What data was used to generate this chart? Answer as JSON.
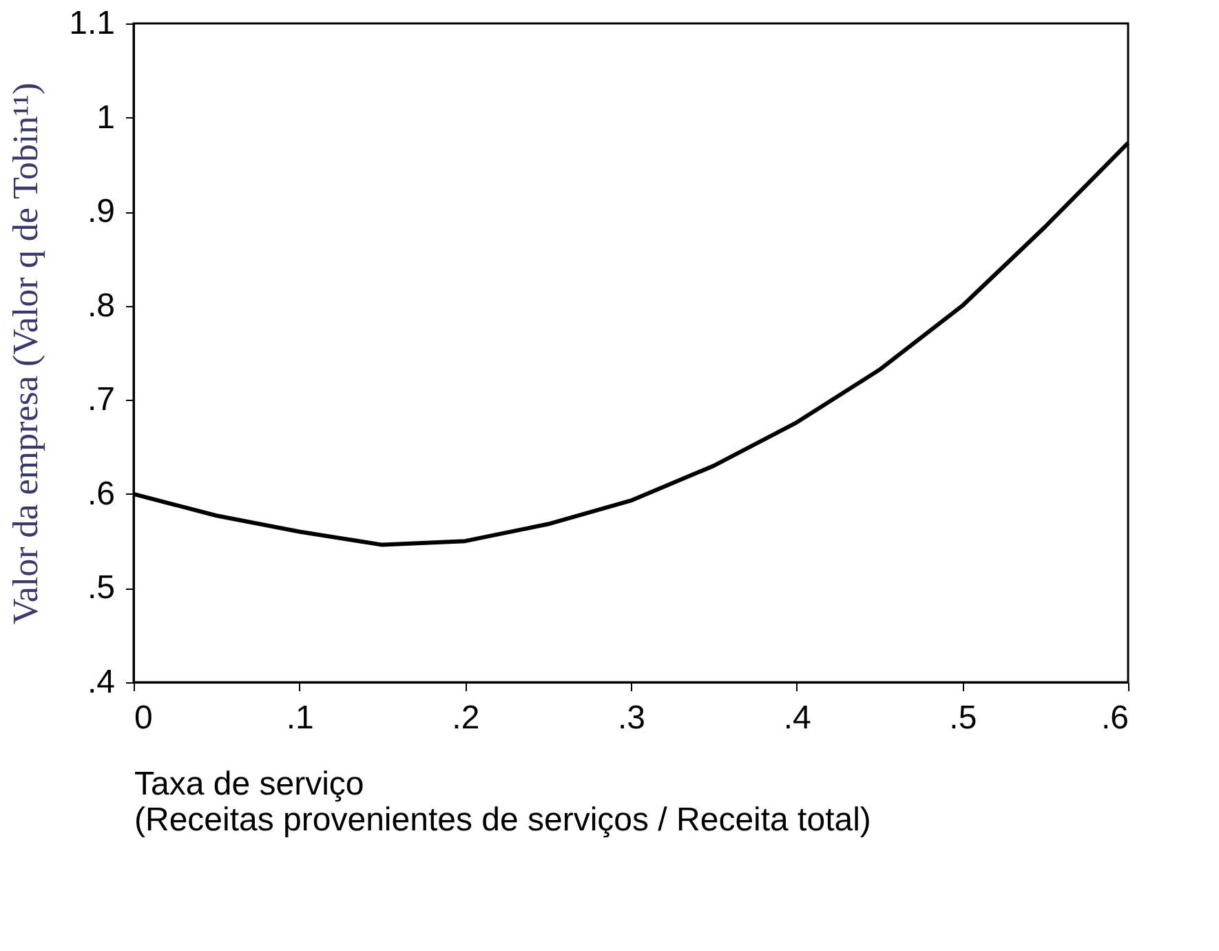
{
  "chart_data": {
    "type": "line",
    "xlabel": "Taxa de serviço\n(Receitas provenientes de serviços / Receita total)",
    "ylabel": "Valor da empresa (Valor q de Tobin¹¹)",
    "x": [
      0,
      0.05,
      0.1,
      0.15,
      0.2,
      0.25,
      0.3,
      0.35,
      0.4,
      0.45,
      0.5,
      0.55,
      0.6
    ],
    "series": [
      {
        "color": "#000000",
        "values": [
          0.6,
          0.577,
          0.56,
          0.546,
          0.55,
          0.568,
          0.593,
          0.63,
          0.676,
          0.732,
          0.8,
          0.884,
          0.973
        ]
      }
    ],
    "xlim": [
      0,
      0.6
    ],
    "ylim": [
      0.4,
      1.1
    ],
    "xticks": [
      0,
      {
        "value": 0.1,
        "label": ".1"
      },
      {
        "value": 0.2,
        "label": ".2"
      },
      {
        "value": 0.3,
        "label": ".3"
      },
      {
        "value": 0.4,
        "label": ".4"
      },
      {
        "value": 0.5,
        "label": ".5"
      },
      {
        "value": 0.6,
        "label": ".6"
      }
    ],
    "yticks": [
      {
        "value": 0.4,
        "label": ".4"
      },
      {
        "value": 0.5,
        "label": ".5"
      },
      {
        "value": 0.6,
        "label": ".6"
      },
      {
        "value": 0.7,
        "label": ".7"
      },
      {
        "value": 0.8,
        "label": ".8"
      },
      {
        "value": 0.9,
        "label": ".9"
      },
      1,
      1.1
    ],
    "grid": false,
    "legend": false,
    "marker": "none",
    "line_style": "solid"
  }
}
